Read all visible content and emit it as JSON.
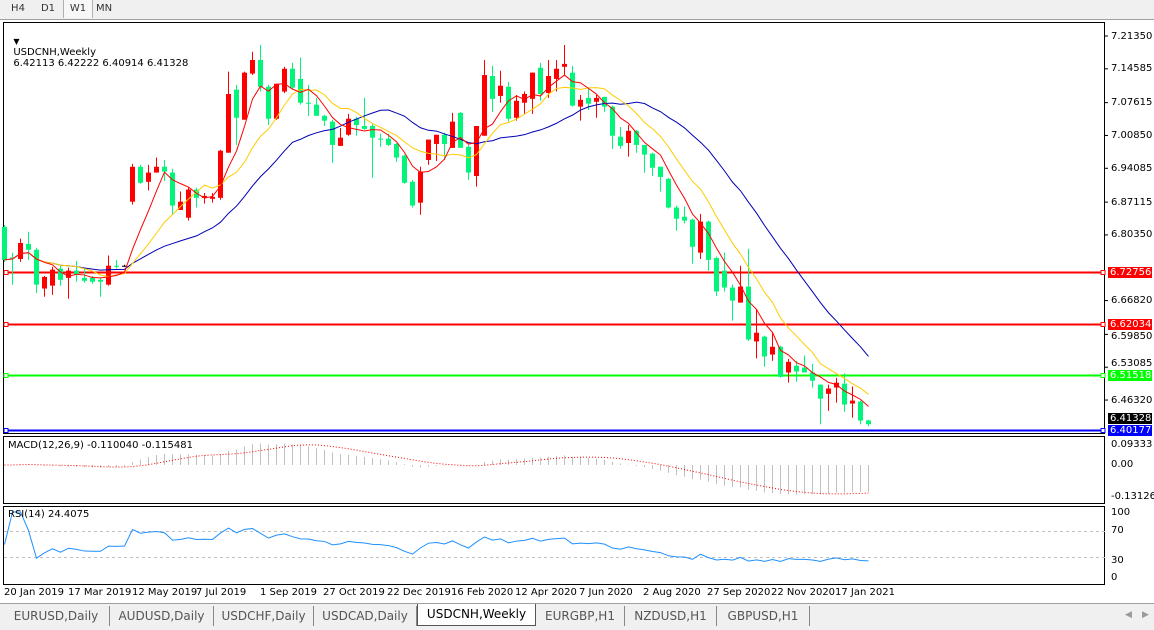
{
  "toolbar": {
    "timeframes": [
      "H4",
      "D1",
      "W1",
      "MN"
    ],
    "active": "W1"
  },
  "chart": {
    "symbol_label": "USDCNH,Weekly",
    "ohlc_text": "6.42113 6.42222 6.40914 6.41328",
    "price_axis": [
      "7.21350",
      "7.14585",
      "7.07615",
      "7.00850",
      "6.94085",
      "6.87115",
      "6.80350",
      "6.66820",
      "6.59850",
      "6.53085",
      "6.46320"
    ],
    "current_price": "6.41328",
    "levels": [
      {
        "price": "6.72756",
        "color": "#ff0000"
      },
      {
        "price": "6.62034",
        "color": "#ff0000"
      },
      {
        "price": "6.51518",
        "color": "#00ff00"
      },
      {
        "price": "6.40177",
        "color": "#0000ff"
      }
    ],
    "colors": {
      "bull": "#ff0000",
      "bear": "#00f57a",
      "ma_fast": "#ff0000",
      "ma_mid": "#ffcc00",
      "ma_slow": "#0000b4"
    },
    "candles_ohlc": [
      [
        6.82,
        6.824,
        6.748,
        6.752
      ],
      [
        6.757,
        6.767,
        6.701,
        6.756
      ],
      [
        6.754,
        6.796,
        6.748,
        6.787
      ],
      [
        6.785,
        6.81,
        6.752,
        6.773
      ],
      [
        6.773,
        6.777,
        6.684,
        6.701
      ],
      [
        6.693,
        6.719,
        6.676,
        6.717
      ],
      [
        6.699,
        6.738,
        6.68,
        6.732
      ],
      [
        6.734,
        6.74,
        6.699,
        6.711
      ],
      [
        6.715,
        6.736,
        6.672,
        6.73
      ],
      [
        6.73,
        6.75,
        6.707,
        6.722
      ],
      [
        6.715,
        6.734,
        6.705,
        6.709
      ],
      [
        6.715,
        6.719,
        6.703,
        6.707
      ],
      [
        6.711,
        6.715,
        6.676,
        6.707
      ],
      [
        6.701,
        6.761,
        6.699,
        6.74
      ],
      [
        6.74,
        6.752,
        6.734,
        6.738
      ],
      [
        6.74,
        6.742,
        6.738,
        6.74
      ],
      [
        6.872,
        6.95,
        6.866,
        6.944
      ],
      [
        6.944,
        6.948,
        6.909,
        6.911
      ],
      [
        6.913,
        6.948,
        6.895,
        6.932
      ],
      [
        6.932,
        6.963,
        6.932,
        6.944
      ],
      [
        6.944,
        6.958,
        6.915,
        6.934
      ],
      [
        6.932,
        6.94,
        6.845,
        6.864
      ],
      [
        6.855,
        6.893,
        6.855,
        6.872
      ],
      [
        6.839,
        6.901,
        6.833,
        6.897
      ],
      [
        6.897,
        6.901,
        6.86,
        6.88
      ],
      [
        6.88,
        6.89,
        6.868,
        6.884
      ],
      [
        6.878,
        6.89,
        6.87,
        6.882
      ],
      [
        6.88,
        6.979,
        6.876,
        6.977
      ],
      [
        6.973,
        7.14,
        6.973,
        7.094
      ],
      [
        7.103,
        7.113,
        6.989,
        7.045
      ],
      [
        7.041,
        7.14,
        7.041,
        7.138
      ],
      [
        7.136,
        7.181,
        7.133,
        7.164
      ],
      [
        7.164,
        7.195,
        7.099,
        7.109
      ],
      [
        7.109,
        7.113,
        7.03,
        7.043
      ],
      [
        7.043,
        7.115,
        7.041,
        7.115
      ],
      [
        7.099,
        7.15,
        7.096,
        7.146
      ],
      [
        7.146,
        7.158,
        7.103,
        7.107
      ],
      [
        7.125,
        7.169,
        7.072,
        7.076
      ],
      [
        7.076,
        7.113,
        7.049,
        7.074
      ],
      [
        7.072,
        7.086,
        7.049,
        7.049
      ],
      [
        7.049,
        7.051,
        7.028,
        7.039
      ],
      [
        7.037,
        7.041,
        6.952,
        6.989
      ],
      [
        6.987,
        7.024,
        6.987,
        7.004
      ],
      [
        7.01,
        7.053,
        7.008,
        7.043
      ],
      [
        7.043,
        7.047,
        7.008,
        7.03
      ],
      [
        7.028,
        7.086,
        7.02,
        7.022
      ],
      [
        7.028,
        7.033,
        6.921,
        7.004
      ],
      [
        7.002,
        7.012,
        6.985,
        7.0
      ],
      [
        7.002,
        7.012,
        6.987,
        6.989
      ],
      [
        6.991,
        6.993,
        6.954,
        6.963
      ],
      [
        6.967,
        6.969,
        6.909,
        6.911
      ],
      [
        6.913,
        6.917,
        6.86,
        6.864
      ],
      [
        6.87,
        6.944,
        6.845,
        6.934
      ],
      [
        6.958,
        7.0,
        6.948,
        7.0
      ],
      [
        6.991,
        7.01,
        6.956,
        7.01
      ],
      [
        7.01,
        7.014,
        6.958,
        6.991
      ],
      [
        6.983,
        7.055,
        6.983,
        7.037
      ],
      [
        7.055,
        7.057,
        6.983,
        6.983
      ],
      [
        6.985,
        6.989,
        6.917,
        6.932
      ],
      [
        6.925,
        7.028,
        6.903,
        7.028
      ],
      [
        7.008,
        7.164,
        7.008,
        7.133
      ],
      [
        7.131,
        7.152,
        7.057,
        7.084
      ],
      [
        7.09,
        7.142,
        7.076,
        7.111
      ],
      [
        7.109,
        7.119,
        7.037,
        7.043
      ],
      [
        7.045,
        7.092,
        7.039,
        7.08
      ],
      [
        7.076,
        7.099,
        7.053,
        7.094
      ],
      [
        7.084,
        7.138,
        7.053,
        7.138
      ],
      [
        7.148,
        7.158,
        7.08,
        7.094
      ],
      [
        7.096,
        7.164,
        7.086,
        7.131
      ],
      [
        7.125,
        7.164,
        7.099,
        7.146
      ],
      [
        7.15,
        7.195,
        7.133,
        7.156
      ],
      [
        7.138,
        7.152,
        7.068,
        7.07
      ],
      [
        7.068,
        7.092,
        7.039,
        7.082
      ],
      [
        7.086,
        7.105,
        7.061,
        7.074
      ],
      [
        7.078,
        7.092,
        7.045,
        7.086
      ],
      [
        7.088,
        7.088,
        7.057,
        7.068
      ],
      [
        7.068,
        7.07,
        6.981,
        7.008
      ],
      [
        7.006,
        7.026,
        6.981,
        6.987
      ],
      [
        6.993,
        7.03,
        6.965,
        7.018
      ],
      [
        7.018,
        7.02,
        6.973,
        6.989
      ],
      [
        6.989,
        6.989,
        6.932,
        6.969
      ],
      [
        6.971,
        6.973,
        6.925,
        6.942
      ],
      [
        6.944,
        6.944,
        6.893,
        6.923
      ],
      [
        6.919,
        6.921,
        6.858,
        6.86
      ],
      [
        6.86,
        6.864,
        6.812,
        6.837
      ],
      [
        6.841,
        6.862,
        6.827,
        6.833
      ],
      [
        6.835,
        6.837,
        6.744,
        6.779
      ],
      [
        6.767,
        6.847,
        6.754,
        6.831
      ],
      [
        6.831,
        6.833,
        6.73,
        6.752
      ],
      [
        6.756,
        6.759,
        6.678,
        6.687
      ],
      [
        6.73,
        6.767,
        6.687,
        6.695
      ],
      [
        6.695,
        6.701,
        6.627,
        6.668
      ],
      [
        6.664,
        6.74,
        6.664,
        6.697
      ],
      [
        6.697,
        6.775,
        6.585,
        6.588
      ],
      [
        6.584,
        6.651,
        6.549,
        6.602
      ],
      [
        6.594,
        6.596,
        6.532,
        6.553
      ],
      [
        6.557,
        6.602,
        6.544,
        6.573
      ],
      [
        6.573,
        6.575,
        6.509,
        6.511
      ],
      [
        6.52,
        6.548,
        6.499,
        6.542
      ],
      [
        6.534,
        6.544,
        6.501,
        6.522
      ],
      [
        6.53,
        6.555,
        6.52,
        6.52
      ],
      [
        6.52,
        6.538,
        6.489,
        6.503
      ],
      [
        6.495,
        6.495,
        6.413,
        6.466
      ],
      [
        6.476,
        6.495,
        6.441,
        6.487
      ],
      [
        6.489,
        6.509,
        6.458,
        6.499
      ],
      [
        6.497,
        6.518,
        6.439,
        6.454
      ],
      [
        6.456,
        6.491,
        6.427,
        6.462
      ],
      [
        6.46,
        6.462,
        6.413,
        6.421
      ],
      [
        6.42113,
        6.42222,
        6.40914,
        6.41328
      ]
    ]
  },
  "macd": {
    "label": "MACD(12,26,9) -0.110040 -0.115481",
    "axis": [
      "0.09333",
      "0.00",
      "-0.131263"
    ],
    "hist_color": "#c0c0c0",
    "signal_color": "#ff0000"
  },
  "rsi": {
    "label": "RSI(14) 24.4075",
    "axis": [
      "100",
      "70",
      "30",
      "0"
    ],
    "levels": [
      70,
      30
    ],
    "line_color": "#1e90ff"
  },
  "date_axis": [
    "20 Jan 2019",
    "17 Mar 2019",
    "12 May 2019",
    "7 Jul 2019",
    "1 Sep 2019",
    "27 Oct 2019",
    "22 Dec 2019",
    "16 Feb 2020",
    "12 Apr 2020",
    "7 Jun 2020",
    "2 Aug 2020",
    "27 Sep 2020",
    "22 Nov 2020",
    "17 Jan 2021"
  ],
  "tabs": [
    "EURUSD,Daily",
    "AUDUSD,Daily",
    "USDCHF,Daily",
    "USDCAD,Daily",
    "USDCNH,Weekly",
    "EURGBP,H1",
    "NZDUSD,H1",
    "GBPUSD,H1"
  ],
  "active_tab": "USDCNH,Weekly"
}
